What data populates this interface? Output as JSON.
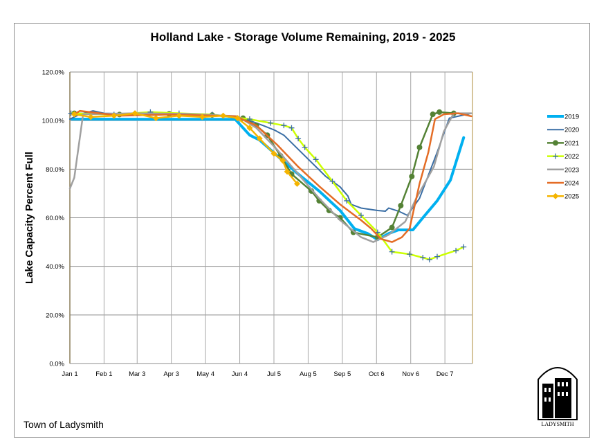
{
  "chart_data": {
    "type": "line",
    "title": "Holland Lake - Storage Volume Remaining, 2019 - 2025",
    "xlabel": "",
    "ylabel": "Lake Capacity Percent Full",
    "x_tick_labels": [
      "Jan 1",
      "Feb 1",
      "Mar 3",
      "Apr 3",
      "May 4",
      "Jun 4",
      "Jul 5",
      "Aug 5",
      "Sep 5",
      "Oct 6",
      "Nov 6",
      "Dec 7"
    ],
    "x_ticks": [
      "01-01",
      "02-01",
      "03-03",
      "04-03",
      "05-04",
      "06-04",
      "07-05",
      "08-05",
      "09-05",
      "10-06",
      "11-06",
      "12-07"
    ],
    "y_tick_labels": [
      "0.0%",
      "20.0%",
      "40.0%",
      "60.0%",
      "80.0%",
      "100.0%",
      "120.0%"
    ],
    "ylim": [
      0,
      120
    ],
    "xlim": [
      "01-01",
      "12-31"
    ],
    "grid": true,
    "legend_position": "right",
    "series": [
      {
        "name": "2019",
        "color": "#00B0F0",
        "marker": "none",
        "width": 4,
        "x": [
          "01-03",
          "05-31",
          "06-13",
          "06-22",
          "07-08",
          "07-27",
          "08-15",
          "09-03",
          "09-16",
          "09-28",
          "10-07",
          "10-17",
          "10-26",
          "11-08",
          "11-17",
          "11-30",
          "12-12",
          "12-24"
        ],
        "y": [
          100.6,
          100.5,
          94,
          92,
          85.5,
          78,
          71,
          63,
          55.5,
          53.5,
          51,
          53.5,
          55,
          55,
          60,
          67,
          75.5,
          93
        ]
      },
      {
        "name": "2020",
        "color": "#3A6EA5",
        "marker": "none",
        "width": 2,
        "x": [
          "01-01",
          "01-10",
          "01-22",
          "02-01",
          "05-25",
          "06-07",
          "06-25",
          "07-06",
          "07-14",
          "08-02",
          "08-21",
          "09-03",
          "09-10",
          "09-13",
          "09-22",
          "10-07",
          "10-14",
          "10-17",
          "10-26",
          "11-03",
          "11-14",
          "11-30",
          "12-11",
          "12-31"
        ],
        "y": [
          100.6,
          102.6,
          104,
          103,
          102,
          101,
          98,
          96,
          94,
          85.5,
          77,
          72.7,
          69,
          65.5,
          64,
          63,
          62.7,
          64,
          62.7,
          61,
          68,
          87,
          101,
          103
        ]
      },
      {
        "name": "2021",
        "color": "#548235",
        "marker": "circle",
        "width": 2.5,
        "x": [
          "01-05",
          "02-15",
          "04-01",
          "05-10",
          "06-07",
          "06-19",
          "06-29",
          "07-11",
          "07-21",
          "08-08",
          "08-15",
          "08-24",
          "09-03",
          "09-15",
          "10-07",
          "10-20",
          "10-28",
          "11-07",
          "11-14",
          "11-26",
          "12-02",
          "12-15"
        ],
        "y": [
          103,
          102.5,
          102.8,
          102.3,
          101,
          98,
          94,
          85.5,
          78,
          71,
          67,
          63,
          60,
          54,
          52,
          56,
          65,
          77,
          89,
          102.6,
          103.5,
          103
        ]
      },
      {
        "name": "2022",
        "color": "#CCFF00",
        "marker": "plus",
        "markerColor": "#3A6EA5",
        "width": 2.5,
        "x": [
          "01-02",
          "02-10",
          "03-15",
          "04-10",
          "05-10",
          "06-13",
          "07-02",
          "07-14",
          "07-21",
          "07-27",
          "08-02",
          "08-12",
          "08-27",
          "09-09",
          "09-22",
          "10-07",
          "10-20",
          "11-05",
          "11-17",
          "11-23",
          "11-30",
          "12-17",
          "12-24"
        ],
        "y": [
          103,
          102.5,
          103.5,
          103,
          102.5,
          100.6,
          99,
          98,
          97,
          92.6,
          89,
          84,
          75,
          67,
          61,
          54,
          46,
          45,
          43.6,
          42.8,
          44,
          46.5,
          48
        ]
      },
      {
        "name": "2023",
        "color": "#A0A0A0",
        "marker": "none",
        "width": 2.5,
        "x": [
          "01-01",
          "01-05",
          "01-13",
          "03-01",
          "04-15",
          "06-02",
          "06-19",
          "07-08",
          "07-27",
          "08-15",
          "09-03",
          "09-22",
          "10-03",
          "10-17",
          "11-01",
          "11-11",
          "11-27",
          "12-06",
          "12-15",
          "12-31"
        ],
        "y": [
          72,
          76.5,
          102.6,
          103,
          102.8,
          101.8,
          97,
          88,
          78,
          68,
          59,
          52,
          50,
          53,
          58.4,
          68,
          81,
          95.5,
          103,
          103
        ]
      },
      {
        "name": "2024",
        "color": "#E46C25",
        "marker": "none",
        "width": 2.5,
        "x": [
          "01-05",
          "01-10",
          "02-15",
          "04-01",
          "05-31",
          "06-19",
          "07-08",
          "07-27",
          "08-15",
          "09-03",
          "09-22",
          "10-01",
          "10-10",
          "10-20",
          "10-29",
          "11-05",
          "11-14",
          "11-22",
          "11-28",
          "12-06",
          "12-19",
          "12-31"
        ],
        "y": [
          102.6,
          104,
          102,
          102.5,
          101.8,
          98,
          90,
          81,
          73,
          65.5,
          59,
          55.6,
          51.3,
          50,
          52,
          55.6,
          74,
          87,
          100.6,
          102.6,
          103,
          101.8
        ]
      },
      {
        "name": "2025",
        "color": "#F4B400",
        "marker": "diamond",
        "width": 2.5,
        "x": [
          "01-05",
          "01-20",
          "02-10",
          "03-01",
          "03-20",
          "04-10",
          "05-01",
          "05-20",
          "06-02",
          "06-13",
          "06-22",
          "07-05",
          "07-13",
          "07-17",
          "07-26"
        ],
        "y": [
          102.6,
          101.5,
          102,
          103,
          101,
          102,
          101.5,
          102,
          101,
          97,
          92.6,
          86.4,
          83.5,
          79,
          74
        ]
      }
    ]
  },
  "footer": {
    "text": "Town of Ladysmith"
  },
  "logo": {
    "text": "LADYSMITH"
  }
}
